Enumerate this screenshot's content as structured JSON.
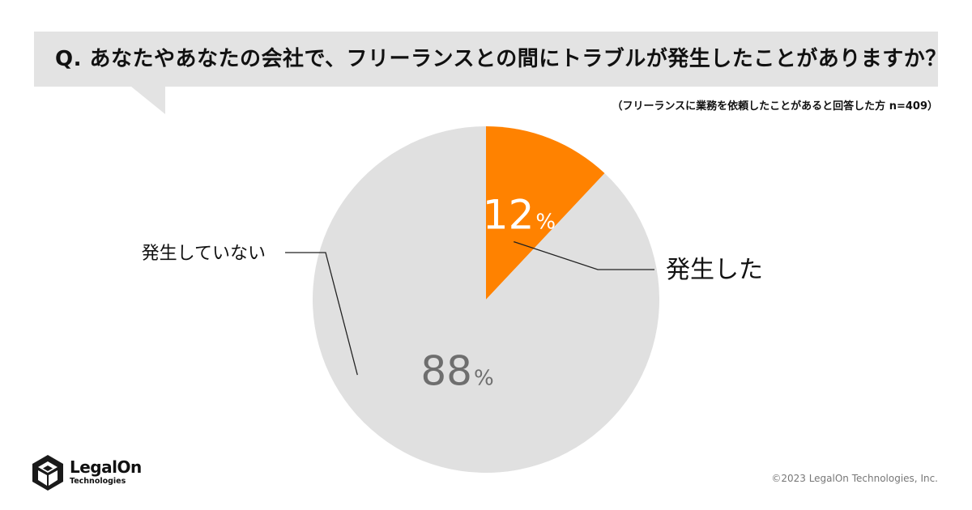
{
  "header": {
    "question": "Q. あなたやあなたの会社で、フリーランスとの間にトラブルが発生したことがありますか？",
    "subtitle": "（フリーランスに業務を依頼したことがあると回答した方 n=409）"
  },
  "chart_data": {
    "type": "pie",
    "title": "",
    "unit": "%",
    "slices": [
      {
        "label": "発生した",
        "value": 12,
        "color": "#ff8200",
        "value_color": "#ffffff"
      },
      {
        "label": "発生していない",
        "value": 88,
        "color": "#e0e0e0",
        "value_color": "#6e6e6e"
      }
    ]
  },
  "footer": {
    "logo_name": "LegalOn",
    "logo_sub": "Technologies",
    "copyright": "©2023 LegalOn Technologies, Inc."
  },
  "colors": {
    "accent": "#ff8200",
    "bubble": "#e3e3e3",
    "slice_gray": "#e0e0e0"
  }
}
